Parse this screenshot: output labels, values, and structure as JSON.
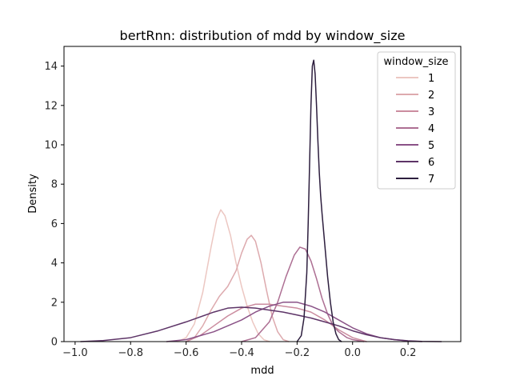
{
  "chart_data": {
    "type": "line",
    "title": "bertRnn: distribution of mdd by window_size",
    "xlabel": "mdd",
    "ylabel": "Density",
    "xlim": [
      -1.04,
      0.39
    ],
    "ylim": [
      0,
      15
    ],
    "xticks": [
      -1.0,
      -0.8,
      -0.6,
      -0.4,
      -0.2,
      0.0,
      0.2
    ],
    "xtick_labels": [
      "−1.0",
      "−0.8",
      "−0.6",
      "−0.4",
      "−0.2",
      "0.0",
      "0.2"
    ],
    "yticks": [
      0,
      2,
      4,
      6,
      8,
      10,
      12,
      14
    ],
    "ytick_labels": [
      "0",
      "2",
      "4",
      "6",
      "8",
      "10",
      "12",
      "14"
    ],
    "grid": false,
    "legend": {
      "title": "window_size",
      "placement": "top-right"
    },
    "series": [
      {
        "name": "1",
        "color": "#ecc7c2",
        "x": [
          -0.63,
          -0.6,
          -0.57,
          -0.54,
          -0.51,
          -0.49,
          -0.475,
          -0.46,
          -0.44,
          -0.42,
          -0.4,
          -0.38,
          -0.36,
          -0.34,
          -0.32,
          -0.3
        ],
        "y": [
          0.0,
          0.2,
          0.9,
          2.5,
          4.8,
          6.2,
          6.7,
          6.4,
          5.4,
          4.0,
          2.8,
          1.8,
          1.0,
          0.4,
          0.1,
          0.0
        ]
      },
      {
        "name": "2",
        "color": "#ddaaae",
        "x": [
          -0.6,
          -0.57,
          -0.54,
          -0.51,
          -0.48,
          -0.45,
          -0.42,
          -0.4,
          -0.38,
          -0.365,
          -0.35,
          -0.33,
          -0.31,
          -0.29,
          -0.27,
          -0.25,
          -0.23
        ],
        "y": [
          0.0,
          0.2,
          0.8,
          1.6,
          2.3,
          2.8,
          3.6,
          4.5,
          5.2,
          5.4,
          5.1,
          4.0,
          2.6,
          1.3,
          0.5,
          0.1,
          0.0
        ]
      },
      {
        "name": "3",
        "color": "#cb8c9f",
        "x": [
          -0.6,
          -0.55,
          -0.5,
          -0.45,
          -0.4,
          -0.35,
          -0.3,
          -0.25,
          -0.2,
          -0.15,
          -0.1,
          -0.05,
          0.0,
          0.05
        ],
        "y": [
          0.0,
          0.3,
          0.8,
          1.3,
          1.7,
          1.9,
          1.9,
          1.8,
          1.7,
          1.5,
          1.1,
          0.6,
          0.2,
          0.0
        ]
      },
      {
        "name": "4",
        "color": "#ad6f93",
        "x": [
          -0.4,
          -0.35,
          -0.3,
          -0.27,
          -0.24,
          -0.21,
          -0.19,
          -0.17,
          -0.15,
          -0.13,
          -0.11,
          -0.09,
          -0.07,
          -0.05,
          -0.02,
          0.0,
          0.04
        ],
        "y": [
          0.0,
          0.2,
          1.0,
          2.0,
          3.3,
          4.4,
          4.8,
          4.7,
          4.1,
          3.2,
          2.2,
          1.4,
          0.8,
          0.5,
          0.2,
          0.1,
          0.0
        ]
      },
      {
        "name": "5",
        "color": "#8a5287",
        "x": [
          -0.67,
          -0.6,
          -0.55,
          -0.5,
          -0.45,
          -0.4,
          -0.35,
          -0.3,
          -0.25,
          -0.2,
          -0.15,
          -0.1,
          -0.05,
          0.0,
          0.05,
          0.1,
          0.15,
          0.2,
          0.25
        ],
        "y": [
          0.0,
          0.1,
          0.3,
          0.5,
          0.8,
          1.1,
          1.5,
          1.8,
          2.0,
          2.0,
          1.8,
          1.5,
          1.1,
          0.7,
          0.4,
          0.2,
          0.1,
          0.03,
          0.0
        ]
      },
      {
        "name": "6",
        "color": "#5d3467",
        "x": [
          -0.98,
          -0.9,
          -0.8,
          -0.7,
          -0.6,
          -0.5,
          -0.45,
          -0.4,
          -0.35,
          -0.3,
          -0.25,
          -0.2,
          -0.15,
          -0.1,
          -0.05,
          0.0,
          0.05,
          0.1,
          0.15,
          0.2,
          0.25,
          0.32
        ],
        "y": [
          0.0,
          0.05,
          0.2,
          0.55,
          1.0,
          1.5,
          1.7,
          1.75,
          1.7,
          1.6,
          1.5,
          1.35,
          1.2,
          1.0,
          0.8,
          0.55,
          0.35,
          0.2,
          0.1,
          0.04,
          0.01,
          0.0
        ]
      },
      {
        "name": "7",
        "color": "#2d1e3e",
        "x": [
          -0.2,
          -0.185,
          -0.175,
          -0.165,
          -0.16,
          -0.155,
          -0.15,
          -0.145,
          -0.14,
          -0.135,
          -0.13,
          -0.125,
          -0.12,
          -0.115,
          -0.11,
          -0.1,
          -0.09,
          -0.08,
          -0.07,
          -0.06,
          -0.05,
          -0.04
        ],
        "y": [
          0.0,
          0.3,
          1.2,
          3.5,
          6.0,
          9.0,
          12.0,
          14.0,
          14.3,
          13.6,
          12.0,
          10.2,
          8.6,
          7.4,
          6.5,
          4.9,
          3.3,
          2.0,
          1.0,
          0.4,
          0.1,
          0.0
        ]
      }
    ]
  }
}
